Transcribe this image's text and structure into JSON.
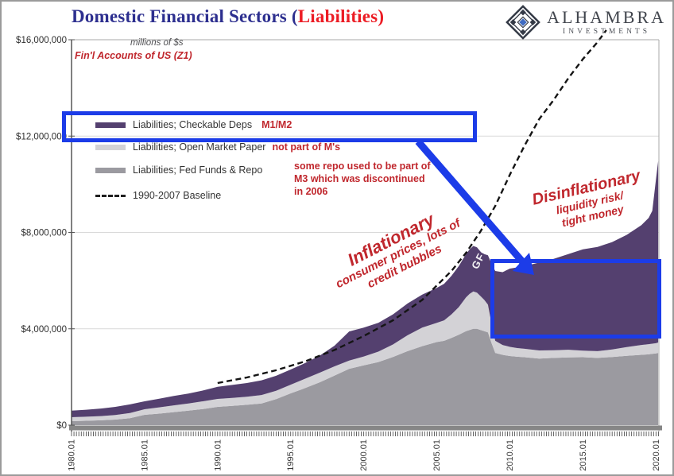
{
  "header": {
    "title": {
      "part1": "Domestic Financial Sectors (",
      "part2": "Liabilities",
      "part3": ")"
    },
    "logo": {
      "name": "ALHAMBRA",
      "subtitle": "INVESTMENTS"
    }
  },
  "notes": {
    "units": "millions of $s",
    "source": "Fin'l Accounts of US (Z1)"
  },
  "legend": {
    "items": [
      {
        "label": "Liabilities; Checkable Deps",
        "note": "M1/M2",
        "swatch": "#54406f",
        "type": "bar"
      },
      {
        "label": "Liabilities; Open Market Paper",
        "note": "not part of M's",
        "swatch": "#d3d2d6",
        "type": "bar"
      },
      {
        "label": "Liabilities; Fed Funds & Repo",
        "note": "some repo used to be part of M3 which was discontinued in 2006",
        "swatch": "#9b9aa0",
        "type": "bar"
      },
      {
        "label": "1990-2007 Baseline",
        "note": "",
        "swatch": "#1f1f1f",
        "type": "dash"
      }
    ]
  },
  "annotations": {
    "inflationary": {
      "title": "Inflationary",
      "line2": "consumer prices, lots of",
      "line3": "credit bubbles"
    },
    "disinflationary": {
      "title": "Disinflationary",
      "line2": "liquidity risk/",
      "line3": "tight money"
    },
    "gfc": "GFC"
  },
  "colors": {
    "title_navy": "#2d2f8f",
    "title_red": "#ec1c24",
    "annotation_red": "#c0272d",
    "highlight_blue": "#1c3ce8",
    "purple_area": "#54406f",
    "light_gray_area": "#d3d2d6",
    "gray_area": "#9b9aa0",
    "baseline_black": "#151515",
    "gridline": "#d9d9d9",
    "axis_bar": "#868686"
  },
  "chart_data": {
    "type": "area",
    "stacked": true,
    "title": "Domestic Financial Sectors (Liabilities)",
    "ylabel_note": "millions of $s",
    "source_note": "Fin'l Accounts of US (Z1)",
    "xlim": [
      1980,
      2020.2
    ],
    "ylim": [
      0,
      16000000
    ],
    "grid": "horizontal",
    "legend_position": "top-left",
    "yticks": [
      {
        "value": 0,
        "label": "$0"
      },
      {
        "value": 4000000,
        "label": "$4,000,000"
      },
      {
        "value": 8000000,
        "label": "$8,000,000"
      },
      {
        "value": 12000000,
        "label": "$12,000,000"
      },
      {
        "value": 16000000,
        "label": "$16,000,000"
      }
    ],
    "xticks": [
      {
        "value": 1980,
        "label": "1980.01"
      },
      {
        "value": 1985,
        "label": "1985.01"
      },
      {
        "value": 1990,
        "label": "1990.01"
      },
      {
        "value": 1995,
        "label": "1995.01"
      },
      {
        "value": 2000,
        "label": "2000.01"
      },
      {
        "value": 2005,
        "label": "2005.01"
      },
      {
        "value": 2010,
        "label": "2010.01"
      },
      {
        "value": 2015,
        "label": "2015.01"
      },
      {
        "value": 2020,
        "label": "2020.01"
      }
    ],
    "x": [
      1980,
      1981,
      1982,
      1983,
      1984,
      1985,
      1986,
      1987,
      1988,
      1989,
      1990,
      1991,
      1992,
      1993,
      1994,
      1995,
      1996,
      1997,
      1998,
      1999,
      2000,
      2001,
      2002,
      2003,
      2004,
      2005,
      2005.5,
      2006,
      2006.5,
      2007,
      2007.25,
      2007.5,
      2007.75,
      2008,
      2008.25,
      2008.5,
      2008.75,
      2009,
      2009.5,
      2010,
      2010.5,
      2011,
      2012,
      2013,
      2014,
      2015,
      2016,
      2017,
      2018,
      2019,
      2019.5,
      2019.75,
      2020,
      2020.15
    ],
    "series": [
      {
        "name": "Liabilities; Fed Funds & Repo",
        "color": "#9b9aa0",
        "values": [
          165000,
          180000,
          200000,
          230000,
          290000,
          430000,
          480000,
          540000,
          600000,
          670000,
          760000,
          800000,
          845000,
          900000,
          1080000,
          1320000,
          1540000,
          1780000,
          2060000,
          2340000,
          2480000,
          2620000,
          2830000,
          3070000,
          3280000,
          3450000,
          3500000,
          3620000,
          3750000,
          3900000,
          3950000,
          4000000,
          4000000,
          3950000,
          3900000,
          3850000,
          3400000,
          3000000,
          2920000,
          2870000,
          2840000,
          2820000,
          2760000,
          2790000,
          2810000,
          2820000,
          2790000,
          2830000,
          2880000,
          2920000,
          2940000,
          2960000,
          2980000,
          3000000
        ]
      },
      {
        "name": "Liabilities; Open Market Paper",
        "color": "#d3d2d6",
        "values": [
          165000,
          170000,
          175000,
          190000,
          210000,
          230000,
          260000,
          280000,
          300000,
          320000,
          330000,
          330000,
          335000,
          350000,
          350000,
          360000,
          390000,
          400000,
          380000,
          340000,
          370000,
          430000,
          520000,
          660000,
          770000,
          800000,
          850000,
          980000,
          1150000,
          1400000,
          1500000,
          1550000,
          1500000,
          1400000,
          1300000,
          1150000,
          800000,
          500000,
          410000,
          380000,
          360000,
          350000,
          340000,
          320000,
          320000,
          270000,
          280000,
          310000,
          360000,
          410000,
          420000,
          420000,
          420000,
          430000
        ]
      },
      {
        "name": "Liabilities; Checkable Deps",
        "color": "#54406f",
        "values": [
          270000,
          290000,
          315000,
          340000,
          360000,
          330000,
          360000,
          390000,
          410000,
          450000,
          500000,
          540000,
          570000,
          610000,
          620000,
          630000,
          650000,
          710000,
          860000,
          1210000,
          1200000,
          1200000,
          1250000,
          1320000,
          1370000,
          1450000,
          1520000,
          1600000,
          1700000,
          1800000,
          1850000,
          1890000,
          1880000,
          1850000,
          1900000,
          2050000,
          2500000,
          2900000,
          3020000,
          3250000,
          3350000,
          3430000,
          3650000,
          3790000,
          3970000,
          4210000,
          4330000,
          4460000,
          4660000,
          4970000,
          5240000,
          5520000,
          6800000,
          7540000
        ]
      }
    ],
    "baseline": {
      "name": "1990-2007 Baseline",
      "style": "dashed",
      "color": "#151515",
      "x": [
        1990,
        1992,
        1994,
        1996,
        1998,
        2000,
        2002,
        2004,
        2006,
        2007,
        2008,
        2009,
        2010,
        2011,
        2012,
        2013,
        2014,
        2015,
        2016,
        2016.6
      ],
      "values": [
        1750000,
        1980000,
        2280000,
        2650000,
        3120000,
        3700000,
        4350000,
        5200000,
        6400000,
        7150000,
        8050000,
        9100000,
        10400000,
        11600000,
        12700000,
        13500000,
        14400000,
        15200000,
        15900000,
        16400000
      ]
    }
  }
}
